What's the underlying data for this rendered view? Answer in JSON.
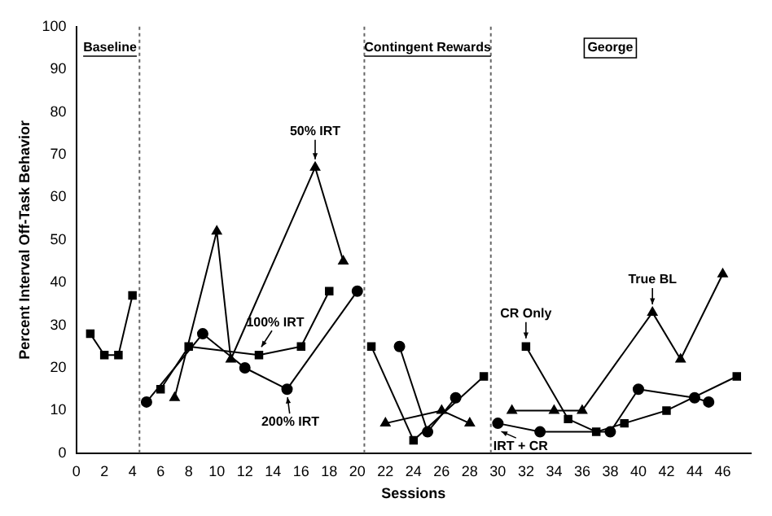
{
  "chart_data": {
    "type": "line",
    "xlabel": "Sessions",
    "ylabel": "Percent Interval Off-Task Behavior",
    "xlim": [
      0,
      48
    ],
    "xticks": [
      0,
      2,
      4,
      6,
      8,
      10,
      12,
      14,
      16,
      18,
      20,
      22,
      24,
      26,
      28,
      30,
      32,
      34,
      36,
      38,
      40,
      42,
      44,
      46
    ],
    "ylim": [
      0,
      100
    ],
    "yticks": [
      0,
      10,
      20,
      30,
      40,
      50,
      60,
      70,
      80,
      90,
      100
    ],
    "grid": false,
    "legend": false,
    "series": [
      {
        "color": "#000000",
        "marker": "square",
        "x": [
          1,
          2,
          3,
          4
        ],
        "values": [
          28,
          23,
          23,
          37
        ]
      },
      {
        "color": "#000000",
        "marker": "circle",
        "x": [
          5,
          9,
          12,
          15,
          20
        ],
        "values": [
          12,
          28,
          20,
          15,
          38
        ]
      },
      {
        "color": "#000000",
        "marker": "square",
        "x": [
          6,
          8,
          13,
          16,
          18
        ],
        "values": [
          15,
          25,
          23,
          25,
          38
        ]
      },
      {
        "color": "#000000",
        "marker": "triangle",
        "x": [
          7,
          10,
          11,
          17,
          19
        ],
        "values": [
          13,
          52,
          22,
          67,
          45
        ]
      },
      {
        "color": "#000000",
        "marker": "square",
        "x": [
          21,
          24,
          29
        ],
        "values": [
          25,
          3,
          18
        ]
      },
      {
        "color": "#000000",
        "marker": "circle",
        "x": [
          23,
          25,
          27
        ],
        "values": [
          25,
          5,
          13
        ]
      },
      {
        "color": "#000000",
        "marker": "triangle",
        "x": [
          22,
          26,
          28
        ],
        "values": [
          7,
          10,
          7
        ]
      },
      {
        "color": "#000000",
        "marker": "triangle",
        "x": [
          31,
          34,
          36,
          41,
          43,
          46
        ],
        "values": [
          10,
          10,
          10,
          33,
          22,
          42
        ]
      },
      {
        "color": "#000000",
        "marker": "square",
        "x": [
          32,
          35,
          37,
          39,
          42,
          47
        ],
        "values": [
          25,
          8,
          5,
          7,
          10,
          18
        ]
      },
      {
        "color": "#000000",
        "marker": "circle",
        "x": [
          30,
          33,
          38,
          40,
          44,
          45
        ],
        "values": [
          7,
          5,
          5,
          15,
          13,
          12
        ]
      }
    ],
    "ref_lines": [
      {
        "axis": "x",
        "value": 4.5,
        "line_style": "dotted",
        "color": "#666666"
      },
      {
        "axis": "x",
        "value": 20.5,
        "line_style": "dotted",
        "color": "#666666"
      },
      {
        "axis": "x",
        "value": 29.5,
        "line_style": "dotted",
        "color": "#666666"
      }
    ],
    "annotations": [
      "Baseline",
      "Contingent Rewards",
      "George",
      {
        "text": "50% IRT",
        "x": 17,
        "y": 67
      },
      {
        "text": "100% IRT",
        "x": 13,
        "y": 23
      },
      {
        "text": "200% IRT",
        "x": 15,
        "y": 15
      },
      {
        "text": "CR Only",
        "x": 32,
        "y": 25
      },
      {
        "text": "IRT + CR",
        "x": 30,
        "y": 7
      },
      {
        "text": "True BL",
        "x": 41,
        "y": 33
      }
    ]
  }
}
